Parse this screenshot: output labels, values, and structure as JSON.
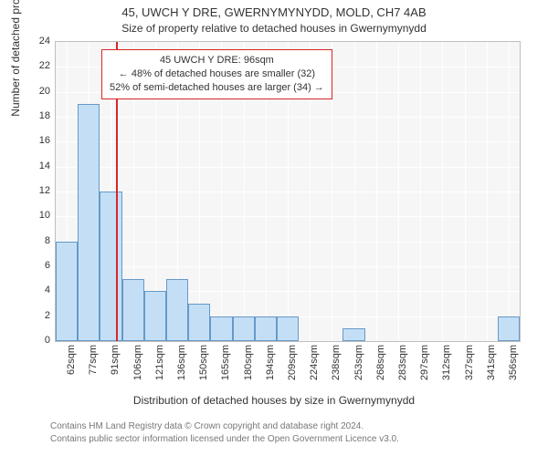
{
  "chart": {
    "type": "histogram",
    "title_line1": "45, UWCH Y DRE, GWERNYMYNYDD, MOLD, CH7 4AB",
    "title_line2": "Size of property relative to detached houses in Gwernymynydd",
    "ylabel": "Number of detached properties",
    "xlabel": "Distribution of detached houses by size in Gwernymynydd",
    "background_color": "#f6f6f6",
    "grid_color": "#ffffff",
    "bar_fill": "#c4dff5",
    "bar_border": "#6699c9",
    "marker_color": "#d62728",
    "marker_x_sqm": 96,
    "annotation": {
      "line1": "45 UWCH Y DRE: 96sqm",
      "line2": "← 48% of detached houses are smaller (32)",
      "line3": "52% of semi-detached houses are larger (34) →",
      "border_color": "#d62728",
      "bg_color": "#ffffff"
    },
    "y_axis": {
      "min": 0,
      "max": 24,
      "tick_step": 2
    },
    "x_axis": {
      "bin_start": 55,
      "bin_width": 15,
      "bin_count": 21,
      "tick_labels": [
        "62sqm",
        "77sqm",
        "91sqm",
        "106sqm",
        "121sqm",
        "136sqm",
        "150sqm",
        "165sqm",
        "180sqm",
        "194sqm",
        "209sqm",
        "224sqm",
        "238sqm",
        "253sqm",
        "268sqm",
        "283sqm",
        "297sqm",
        "312sqm",
        "327sqm",
        "341sqm",
        "356sqm"
      ]
    },
    "bars": [
      8,
      19,
      12,
      5,
      4,
      5,
      3,
      2,
      2,
      2,
      2,
      0,
      0,
      1,
      0,
      0,
      0,
      0,
      0,
      0,
      2
    ],
    "footer1": "Contains HM Land Registry data © Crown copyright and database right 2024.",
    "footer2": "Contains public sector information licensed under the Open Government Licence v3.0.",
    "title_fontsize": 13,
    "subtitle_fontsize": 12,
    "axis_label_fontsize": 12,
    "tick_fontsize": 11,
    "annotation_fontsize": 11,
    "footer_fontsize": 10,
    "footer_color": "#777777"
  }
}
